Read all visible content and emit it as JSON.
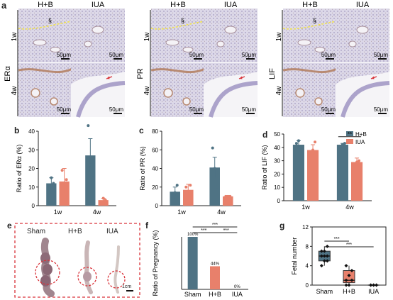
{
  "panel_letters": {
    "a": "a",
    "b": "b",
    "c": "c",
    "d": "d",
    "e": "e",
    "f": "f",
    "g": "g"
  },
  "colors": {
    "hb": "#4f7384",
    "iua": "#e8806b",
    "tissue_bg": "#d9d4e6",
    "tissue_stain": "#b88a72",
    "frame_red": "#d9333a"
  },
  "panel_a": {
    "groups": [
      {
        "marker": "ERα",
        "col_hb": "H+B",
        "col_iua": "IUA",
        "row_1w": "1w",
        "row_4w": "4w"
      },
      {
        "marker": "PR",
        "col_hb": "H+B",
        "col_iua": "IUA",
        "row_1w": "1w",
        "row_4w": "4w"
      },
      {
        "marker": "LIF",
        "col_hb": "H+B",
        "col_iua": "IUA",
        "row_1w": "1w",
        "row_4w": "4w"
      }
    ],
    "scale": "50μm",
    "section_mark": "§"
  },
  "panel_e": {
    "labels": [
      "Sham",
      "H+B",
      "IUA"
    ],
    "scale": "1cm"
  },
  "chart_data": [
    {
      "id": "b",
      "type": "bar",
      "categories": [
        "1w",
        "4w"
      ],
      "series": [
        {
          "name": "H+B",
          "values": [
            12,
            27
          ]
        },
        {
          "name": "IUA",
          "values": [
            13,
            3
          ]
        }
      ],
      "errors": [
        [
          3,
          9
        ],
        [
          7,
          1
        ]
      ],
      "points": [
        [
          [
            9,
            15,
            12
          ],
          [
            43,
            22,
            15
          ]
        ],
        [
          [
            19,
            6,
            14
          ],
          [
            1,
            4,
            3
          ]
        ]
      ],
      "ylabel": "Ratio of ERα (%)",
      "ylim": [
        0,
        40
      ],
      "yticks": [
        0,
        10,
        20,
        30,
        40
      ]
    },
    {
      "id": "c",
      "type": "bar",
      "categories": [
        "1w",
        "4w"
      ],
      "series": [
        {
          "name": "H+B",
          "values": [
            15,
            41
          ]
        },
        {
          "name": "IUA",
          "values": [
            17,
            10
          ]
        }
      ],
      "errors": [
        [
          5,
          11
        ],
        [
          6,
          1
        ]
      ],
      "points": [
        [
          [
            9,
            14,
            22
          ],
          [
            62,
            40,
            20
          ]
        ],
        [
          [
            20,
            11,
            22
          ],
          [
            10,
            10,
            10
          ]
        ]
      ],
      "ylabel": "Ratio of PR (%)",
      "ylim": [
        0,
        80
      ],
      "yticks": [
        0,
        20,
        40,
        60,
        80
      ]
    },
    {
      "id": "d",
      "type": "bar",
      "categories": [
        "1w",
        "4w"
      ],
      "series": [
        {
          "name": "H+B",
          "values": [
            42,
            42
          ]
        },
        {
          "name": "IUA",
          "values": [
            38,
            29
          ]
        }
      ],
      "errors": [
        [
          3,
          1
        ],
        [
          4,
          3
        ]
      ],
      "points": [
        [
          [
            43,
            45,
            40
          ],
          [
            41,
            42,
            43
          ]
        ],
        [
          [
            35,
            38,
            44
          ],
          [
            26,
            29,
            30
          ]
        ]
      ],
      "ylabel": "Ratio of LIF (%)",
      "ylim": [
        0,
        50
      ],
      "yticks": [
        0,
        10,
        20,
        30,
        40,
        50
      ],
      "legend": [
        "H+B",
        "IUA"
      ],
      "legend_position": "top-right",
      "significance": [
        {
          "category": "4w",
          "label": "**"
        }
      ]
    },
    {
      "id": "f",
      "type": "bar",
      "categories": [
        "Sham",
        "H+B",
        "IUA"
      ],
      "values": [
        100,
        44,
        0
      ],
      "value_labels": [
        "100%",
        "44%",
        "0%"
      ],
      "bar_colors": [
        "#4f7384",
        "#e8806b",
        "#e8806b"
      ],
      "ylabel": "Ratio of Pregnancy (%)",
      "ylim": [
        0,
        100
      ],
      "significance": [
        {
          "from": "Sham",
          "to": "IUA",
          "label": "***",
          "level": 3
        },
        {
          "from": "Sham",
          "to": "H+B",
          "label": "***",
          "level": 2
        },
        {
          "from": "H+B",
          "to": "IUA",
          "label": "***",
          "level": 2
        }
      ]
    },
    {
      "id": "g",
      "type": "box",
      "categories": [
        "Sham",
        "H+B",
        "IUA"
      ],
      "ylabel": "Fetal number",
      "ylim": [
        0,
        12
      ],
      "yticks": [
        0,
        4,
        8,
        12
      ],
      "boxes": [
        {
          "q1": 5,
          "median": 6,
          "q3": 7,
          "whisker_lo": 4,
          "whisker_hi": 8,
          "points": [
            4,
            5,
            5,
            6,
            6,
            6,
            7,
            7,
            8
          ]
        },
        {
          "q1": 0.5,
          "median": 1,
          "q3": 3,
          "whisker_lo": 0,
          "whisker_hi": 4,
          "points": [
            0,
            0,
            1,
            1,
            2,
            3,
            4
          ]
        },
        {
          "q1": 0,
          "median": 0,
          "q3": 0,
          "whisker_lo": 0,
          "whisker_hi": 0,
          "points": [
            0,
            0,
            0,
            0,
            0,
            0
          ]
        }
      ],
      "significance": [
        {
          "from": "Sham",
          "to": "H+B",
          "label": "***",
          "level": 1
        },
        {
          "from": "Sham",
          "to": "IUA",
          "label": "***",
          "level": 2
        }
      ]
    }
  ]
}
